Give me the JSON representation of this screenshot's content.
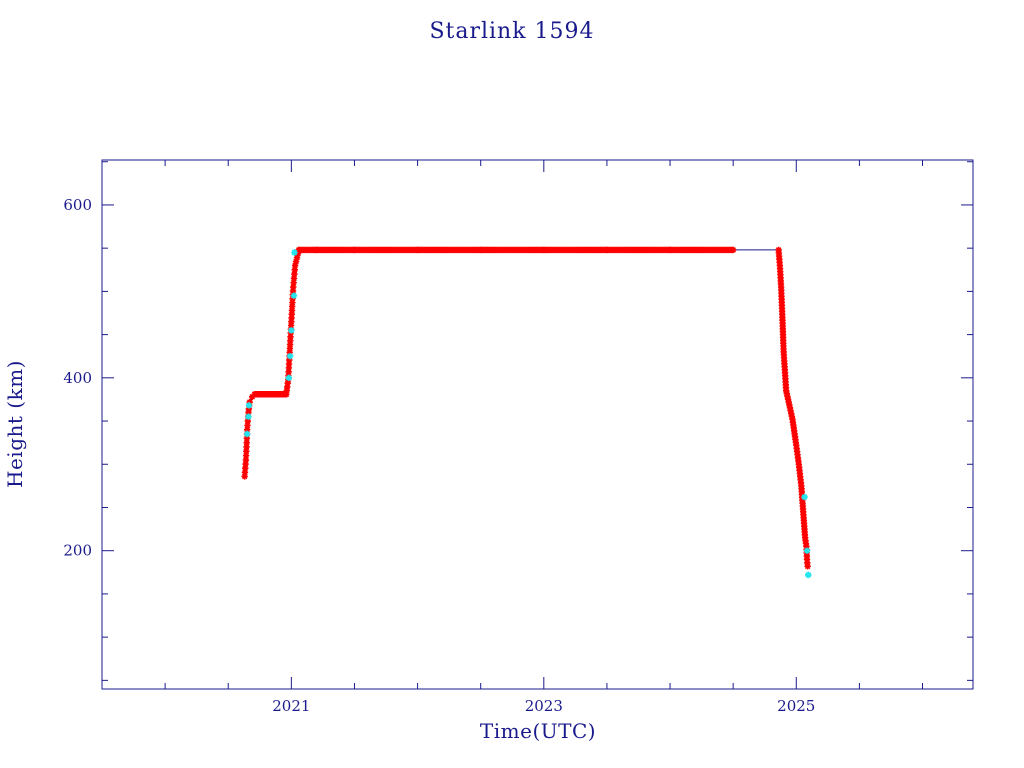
{
  "colors": {
    "axis": "#1a1a8c",
    "text": "#1a1a8c",
    "line": "#1a1a8c",
    "marker_primary": "#ff0000",
    "marker_secondary": "#22e5ee"
  },
  "chart_data": {
    "type": "scatter",
    "title": "Starlink 1594",
    "xlabel": "Time(UTC)",
    "ylabel": "Height (km)",
    "x_unit": "year",
    "xlim": [
      2019.5,
      2026.4
    ],
    "ylim": [
      40,
      652
    ],
    "x_major_ticks": [
      2021,
      2023,
      2025
    ],
    "x_tick_labels": [
      "2021",
      "2023",
      "2025"
    ],
    "x_minor_ticks": [
      2019.5,
      2020,
      2020.5,
      2021.5,
      2022,
      2022.5,
      2023.5,
      2024,
      2024.5,
      2025.5,
      2026
    ],
    "y_major_ticks": [
      200,
      400,
      600
    ],
    "y_tick_labels": [
      "200",
      "400",
      "600"
    ],
    "y_minor_ticks": [
      50,
      100,
      150,
      250,
      300,
      350,
      450,
      500,
      550,
      650
    ],
    "grid": false,
    "legend": "none",
    "markers": "asterisk",
    "series": [
      {
        "color": "marker_primary",
        "x": [
          2020.63,
          2020.64,
          2020.645,
          2020.65,
          2020.66,
          2020.67,
          2020.69,
          2020.71,
          2020.74,
          2020.78,
          2020.82,
          2020.86,
          2020.9,
          2020.94,
          2020.96,
          2020.975,
          2020.985,
          2020.995,
          2021.005,
          2021.015,
          2021.03,
          2021.06,
          2021.2,
          2021.5,
          2022.0,
          2022.5,
          2023.0,
          2023.5,
          2024.0,
          2024.5,
          2024.86,
          2024.87,
          2024.88,
          2024.89,
          2024.9,
          2024.92,
          2024.94,
          2024.97,
          2025.0,
          2025.02,
          2025.04,
          2025.05,
          2025.06,
          2025.07,
          2025.08,
          2025.085,
          2025.09
        ],
        "y": [
          286,
          305,
          320,
          340,
          360,
          372,
          378,
          381,
          381,
          381,
          381,
          381,
          381,
          381,
          381,
          398,
          425,
          452,
          478,
          505,
          530,
          548,
          548,
          548,
          548,
          548,
          548,
          548,
          548,
          548,
          548,
          530,
          505,
          470,
          430,
          385,
          372,
          352,
          322,
          300,
          275,
          255,
          235,
          215,
          205,
          190,
          182
        ]
      },
      {
        "color": "marker_secondary",
        "x": [
          2020.65,
          2020.66,
          2020.665,
          2020.98,
          2020.99,
          2021.0,
          2021.02,
          2021.025,
          2025.065,
          2025.085,
          2025.095
        ],
        "y": [
          335,
          355,
          368,
          400,
          425,
          455,
          495,
          545,
          262,
          200,
          172
        ]
      }
    ]
  }
}
